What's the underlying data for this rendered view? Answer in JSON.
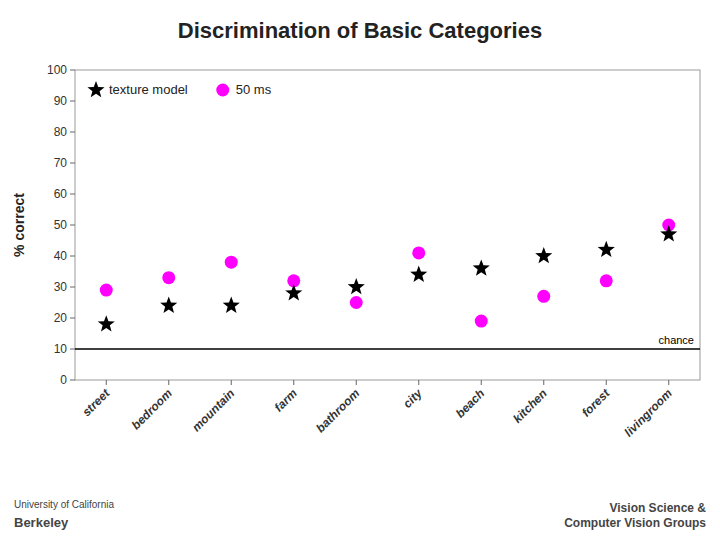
{
  "chart_data": {
    "type": "scatter",
    "title": "Discrimination of Basic Categories",
    "y_label": "% correct",
    "categories": [
      "street",
      "bedroom",
      "mountain",
      "farm",
      "bathroom",
      "city",
      "beach",
      "kitchen",
      "forest",
      "livingroom"
    ],
    "series": [
      {
        "name": "texture model",
        "color": "#000000",
        "marker": "star",
        "values": [
          18,
          24,
          24,
          28,
          30,
          34,
          36,
          40,
          42,
          47
        ]
      },
      {
        "name": "50 ms",
        "color": "#ff00ff",
        "marker": "circle",
        "values": [
          29,
          33,
          38,
          32,
          25,
          41,
          19,
          27,
          32,
          50
        ]
      }
    ],
    "ylim": [
      0,
      100
    ],
    "yticks": [
      0,
      10,
      20,
      30,
      40,
      50,
      60,
      70,
      80,
      90,
      100
    ],
    "grid": false,
    "legend": "upper left",
    "annotations": [
      {
        "text": "chance",
        "y": 10,
        "color": "#000000"
      },
      {
        "text": "University of California"
      },
      {
        "text": "Berkeley"
      },
      {
        "text": "Vision Science &\nComputer Vision Groups"
      }
    ]
  }
}
